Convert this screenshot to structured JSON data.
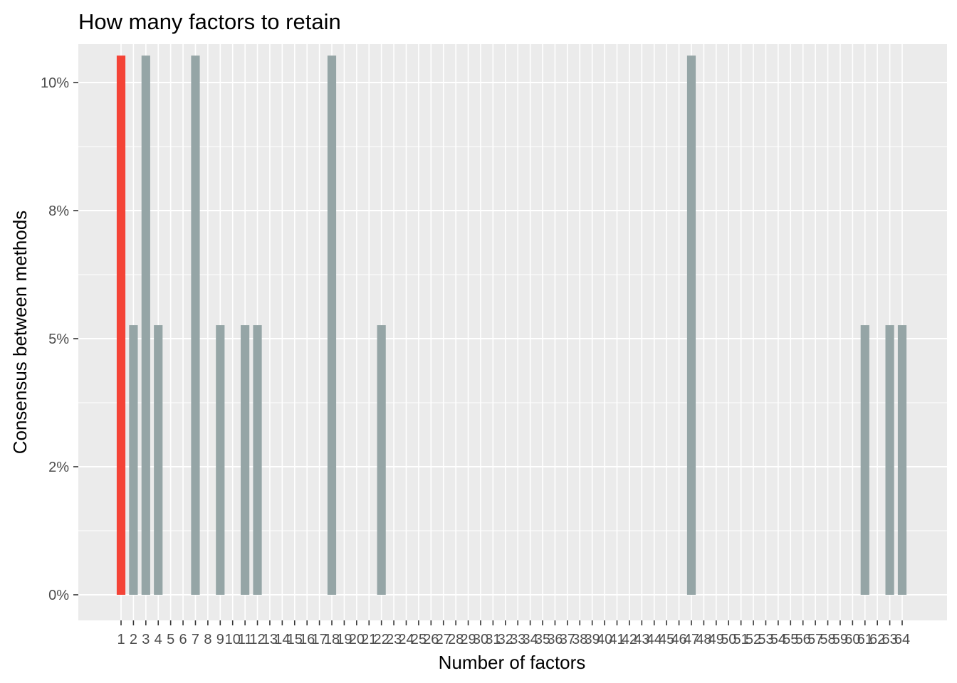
{
  "chart_data": {
    "type": "bar",
    "title": "How many factors to retain",
    "xlabel": "Number of factors",
    "ylabel": "Consensus between methods",
    "x_categories_count": 64,
    "ylim": [
      -0.005,
      0.1075
    ],
    "yticks": [
      0.0,
      0.025,
      0.05,
      0.075,
      0.1
    ],
    "ytick_labels": [
      "0%",
      "2%",
      "5%",
      "8%",
      "10%"
    ],
    "highlight_color": "#f44336",
    "bar_color": "#95a5a6",
    "panel_color": "#ebebeb",
    "grid": true,
    "legend": "none",
    "bars": [
      {
        "x": 1,
        "value": 0.10526,
        "highlight": true
      },
      {
        "x": 2,
        "value": 0.05263,
        "highlight": false
      },
      {
        "x": 3,
        "value": 0.10526,
        "highlight": false
      },
      {
        "x": 4,
        "value": 0.05263,
        "highlight": false
      },
      {
        "x": 7,
        "value": 0.10526,
        "highlight": false
      },
      {
        "x": 9,
        "value": 0.05263,
        "highlight": false
      },
      {
        "x": 11,
        "value": 0.05263,
        "highlight": false
      },
      {
        "x": 12,
        "value": 0.05263,
        "highlight": false
      },
      {
        "x": 18,
        "value": 0.10526,
        "highlight": false
      },
      {
        "x": 22,
        "value": 0.05263,
        "highlight": false
      },
      {
        "x": 47,
        "value": 0.10526,
        "highlight": false
      },
      {
        "x": 61,
        "value": 0.05263,
        "highlight": false
      },
      {
        "x": 63,
        "value": 0.05263,
        "highlight": false
      },
      {
        "x": 64,
        "value": 0.05263,
        "highlight": false
      }
    ]
  }
}
